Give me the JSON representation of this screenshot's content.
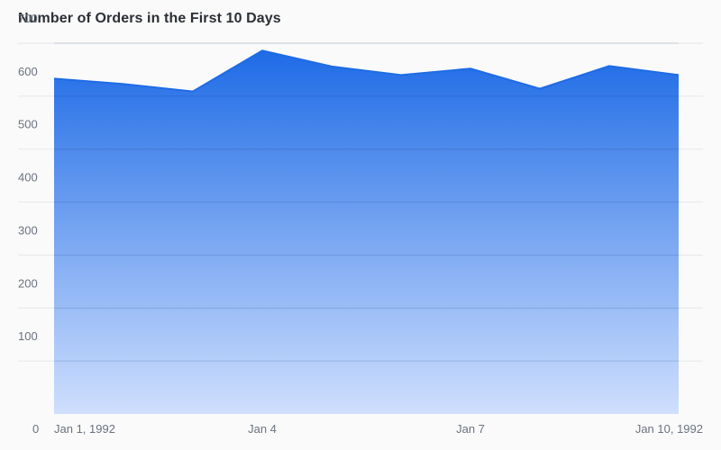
{
  "chart_data": {
    "type": "area",
    "title": "Number of Orders in the First 10 Days",
    "x": [
      "1992-01-01",
      "1992-01-02",
      "1992-01-03",
      "1992-01-04",
      "1992-01-05",
      "1992-01-06",
      "1992-01-07",
      "1992-01-08",
      "1992-01-09",
      "1992-01-10"
    ],
    "series": [
      {
        "values": [
          633,
          623,
          609,
          686,
          656,
          640,
          652,
          614,
          657,
          640
        ],
        "color": "#1e6be6"
      }
    ],
    "ylim": [
      0,
      700
    ],
    "y_ticks": [
      "0",
      "100",
      "200",
      "300",
      "400",
      "500",
      "600",
      "700"
    ],
    "x_tick_labels": [
      "Jan 1, 1992",
      "Jan 4",
      "Jan 7",
      "Jan 10, 1992"
    ],
    "xlabel": "",
    "ylabel": "",
    "grid": true,
    "legend": "none",
    "gradient_top_color": "#1e6be6",
    "gradient_bottom_color": "#cfdffd"
  }
}
